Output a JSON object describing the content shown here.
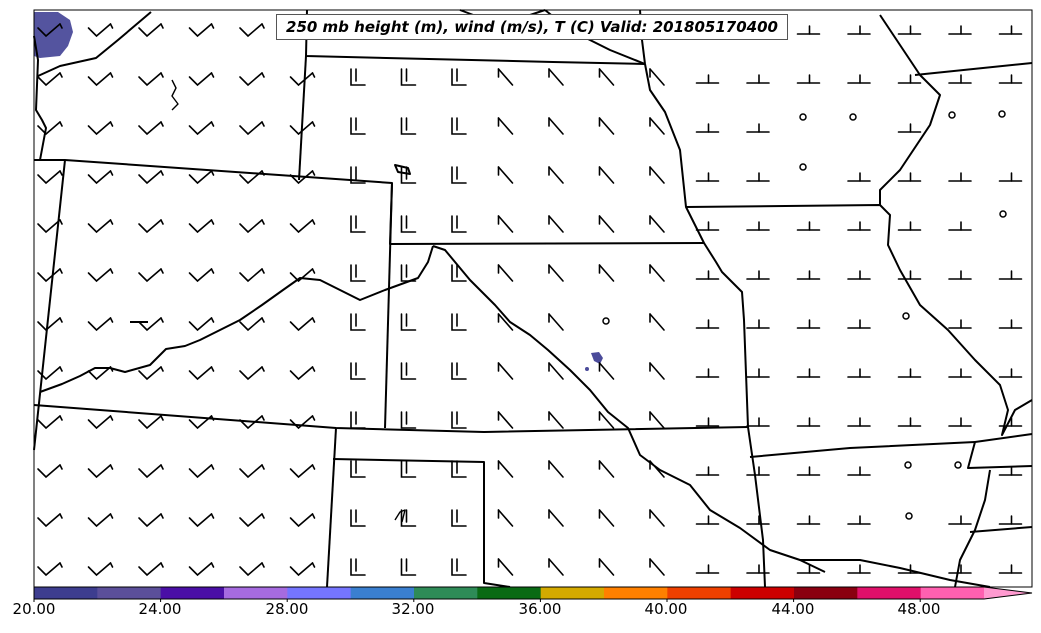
{
  "title": "250 mb height (m), wind (m/s), T (C) Valid: 201805170400",
  "colorbar": {
    "ticks": [
      "20.00",
      "24.00",
      "28.00",
      "32.00",
      "36.00",
      "40.00",
      "44.00",
      "48.00"
    ],
    "colors": [
      "#3d3d8f",
      "#5b4f9a",
      "#4a0fa6",
      "#a66be0",
      "#7575ff",
      "#3a7fd0",
      "#2e8b57",
      "#0a6a14",
      "#d4aa00",
      "#ff8000",
      "#ee4000",
      "#cc0000",
      "#8a0010",
      "#e0106a",
      "#ff60b0",
      "#ff9ad0"
    ]
  },
  "shaded_color": "#4b4b9a",
  "line_color": "#000000"
}
